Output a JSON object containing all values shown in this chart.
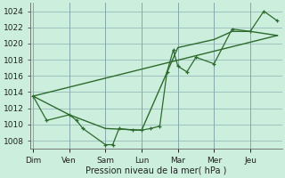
{
  "background_color": "#cceedd",
  "grid_color": "#99bbbb",
  "line_color": "#2d6a2d",
  "xlabel": "Pression niveau de la mer( hPa )",
  "ylim": [
    1007,
    1025
  ],
  "yticks": [
    1008,
    1010,
    1012,
    1014,
    1016,
    1018,
    1020,
    1022,
    1024
  ],
  "day_labels": [
    "Dim",
    "Ven",
    "Sam",
    "Lun",
    "Mar",
    "Mer",
    "Jeu"
  ],
  "day_positions": [
    0,
    4,
    8,
    12,
    16,
    20,
    24
  ],
  "xlim": [
    -0.3,
    27.5
  ],
  "series1_x": [
    0,
    1.5,
    4,
    4.8,
    5.5,
    8,
    8.8,
    9.5,
    11,
    12,
    13,
    14,
    14.8,
    15.5,
    16,
    17,
    18,
    20,
    22,
    24,
    25.5,
    27
  ],
  "series1_y": [
    1013.5,
    1010.5,
    1011.2,
    1010.5,
    1009.5,
    1007.5,
    1007.5,
    1009.5,
    1009.3,
    1009.3,
    1009.5,
    1009.8,
    1016.5,
    1019.2,
    1017.2,
    1016.5,
    1018.3,
    1017.5,
    1021.8,
    1021.5,
    1024.0,
    1022.8
  ],
  "series2_x": [
    0,
    4,
    8,
    12,
    16,
    20,
    22,
    24,
    27
  ],
  "series2_y": [
    1013.5,
    1011.2,
    1009.5,
    1009.3,
    1019.5,
    1020.5,
    1021.5,
    1021.5,
    1021.0
  ],
  "series3_x": [
    0,
    27
  ],
  "series3_y": [
    1013.5,
    1021.0
  ]
}
